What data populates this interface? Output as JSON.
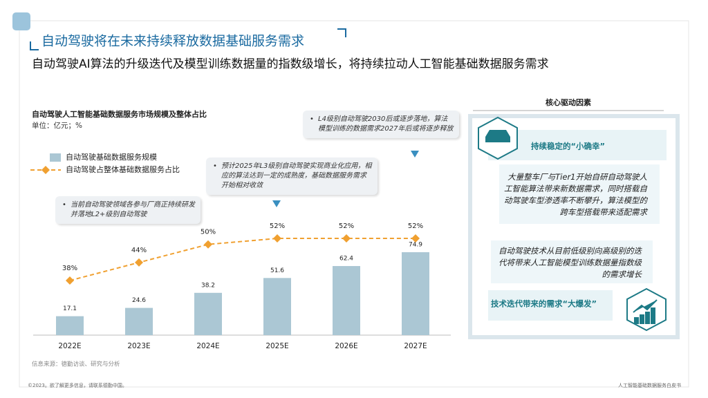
{
  "header": {
    "title": "自动驾驶将在未来持续释放数据基础服务需求",
    "subtitle": "自动驾驶AI算法的升级迭代及模型训练数据量的指数级增长，将持续拉动人工智能基础数据服务需求"
  },
  "chart_data": {
    "type": "bar",
    "title": "自动驾驶人工智能基础数据服务市场规模及整体占比",
    "unit": "单位：亿元；%",
    "categories": [
      "2022E",
      "2023E",
      "2024E",
      "2025E",
      "2026E",
      "2027E"
    ],
    "series": [
      {
        "name": "自动驾驶基础数据服务规模",
        "type": "bar",
        "color": "#abc7d4",
        "values": [
          17.1,
          24.6,
          38.2,
          51.6,
          62.4,
          74.9
        ]
      },
      {
        "name": "自动驾驶占整体基础数据服务占比",
        "type": "line",
        "axis": "y2",
        "color": "#f0a030",
        "values": [
          38,
          44,
          50,
          52,
          52,
          52
        ],
        "value_labels": [
          "38%",
          "44%",
          "50%",
          "52%",
          "52%",
          "52%"
        ]
      }
    ],
    "annotations": [
      "当前自动驾驶领域各参与厂商正持续研发并落地L2+级别自动驾驶",
      "预计2025年L3级别自动驾驶实现商业化应用，相应的算法达到一定的成熟度，基础数据服务需求开始相对收敛",
      "L4级别自动驾驶2030后或逐步落地，算法模型训练的数据需求2027年后或将逐步释放"
    ]
  },
  "panel": {
    "title": "核心驱动因素",
    "factor1": "持续稳定的“小确幸”",
    "text1": "大量整车厂与Tier1开始自研自动驾驶人工智能算法带来新数据需求，同时搭载自动驾驶车型渗透率不断攀升，算法模型的跨车型搭载带来适配需求",
    "text2": "自动驾驶技术从目前低级别向高级别的迭代将带来人工智能模型训练数据量指数级的需求增长",
    "factor2": "技术迭代带来的需求“大爆发”"
  },
  "footer": {
    "source": "信息来源：德勤访谈、研究与分析",
    "left": "©2023。欲了解更多信息，请联系德勤中国。",
    "right": "人工智能基础数据服务白皮书"
  }
}
